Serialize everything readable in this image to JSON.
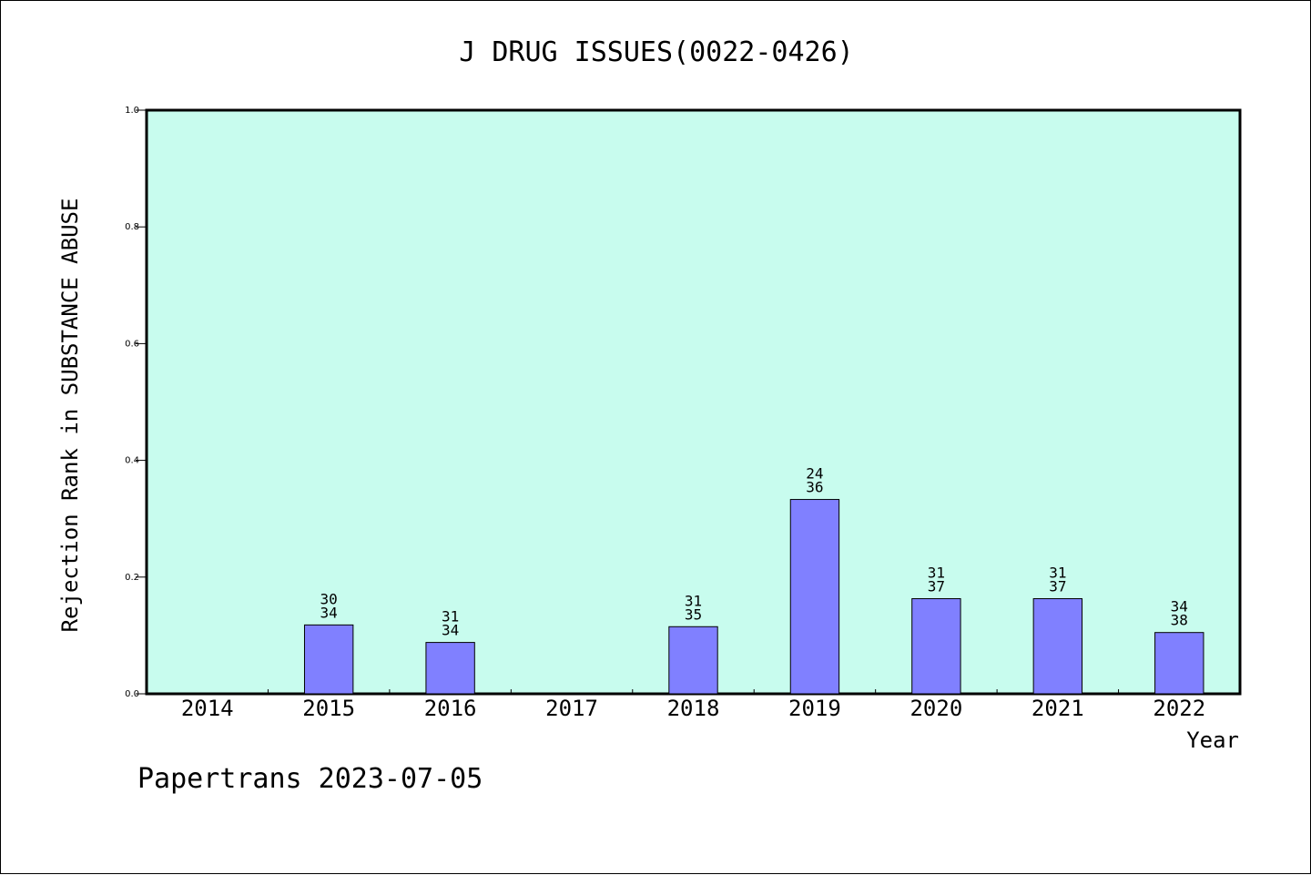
{
  "chart_data": {
    "type": "bar",
    "title": "J DRUG ISSUES(0022-0426)",
    "ylabel": "Rejection Rank in SUBSTANCE ABUSE",
    "xlabel": "Year",
    "ylim": [
      0,
      1.0
    ],
    "yticks": [
      "0.0",
      "0.2",
      "0.4",
      "0.6",
      "0.8",
      "1.0"
    ],
    "categories": [
      "2014",
      "2015",
      "2016",
      "2017",
      "2018",
      "2019",
      "2020",
      "2021",
      "2022"
    ],
    "values": [
      null,
      0.118,
      0.088,
      null,
      0.115,
      0.333,
      0.163,
      0.163,
      0.105
    ],
    "labels_top": [
      "",
      "30",
      "31",
      "",
      "31",
      "24",
      "31",
      "31",
      "34"
    ],
    "labels_bottom": [
      "",
      "34",
      "34",
      "",
      "35",
      "36",
      "37",
      "37",
      "38"
    ],
    "grid": false,
    "colors": {
      "plot_bg": "#c8fcee",
      "bar": "#8080ff"
    }
  },
  "footer": {
    "text": "Papertrans 2023-07-05"
  }
}
